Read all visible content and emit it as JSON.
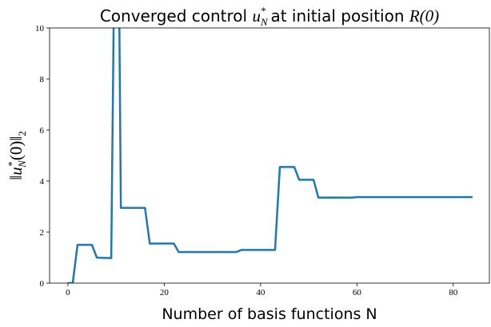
{
  "chart_data": {
    "type": "line",
    "title": [
      "Converged control ",
      "u",
      "N",
      "*",
      " at initial position ",
      "R(0)"
    ],
    "xlabel": "Number of basis functions N",
    "ylabel": [
      "‖",
      "u",
      "*",
      "N",
      "(0)‖",
      "2"
    ],
    "series": [
      {
        "color": "#1f77b4",
        "x": [
          0,
          1,
          2,
          5,
          6,
          9,
          9.6,
          10.6,
          11,
          16,
          17,
          22,
          23,
          35,
          36,
          43,
          44,
          47,
          48,
          51,
          52,
          59,
          60,
          84
        ],
        "values": [
          0,
          0,
          1.5,
          1.5,
          1.0,
          0.98,
          12,
          12,
          2.95,
          2.95,
          1.55,
          1.55,
          1.22,
          1.22,
          1.3,
          1.3,
          4.55,
          4.55,
          4.05,
          4.05,
          3.35,
          3.35,
          3.37,
          3.37
        ]
      }
    ],
    "xlim": [
      -3.8,
      87.5
    ],
    "ylim": [
      0,
      10
    ],
    "xticks": [
      0,
      20,
      40,
      60,
      80
    ],
    "yticks": [
      0,
      2,
      4,
      6,
      8,
      10
    ]
  }
}
